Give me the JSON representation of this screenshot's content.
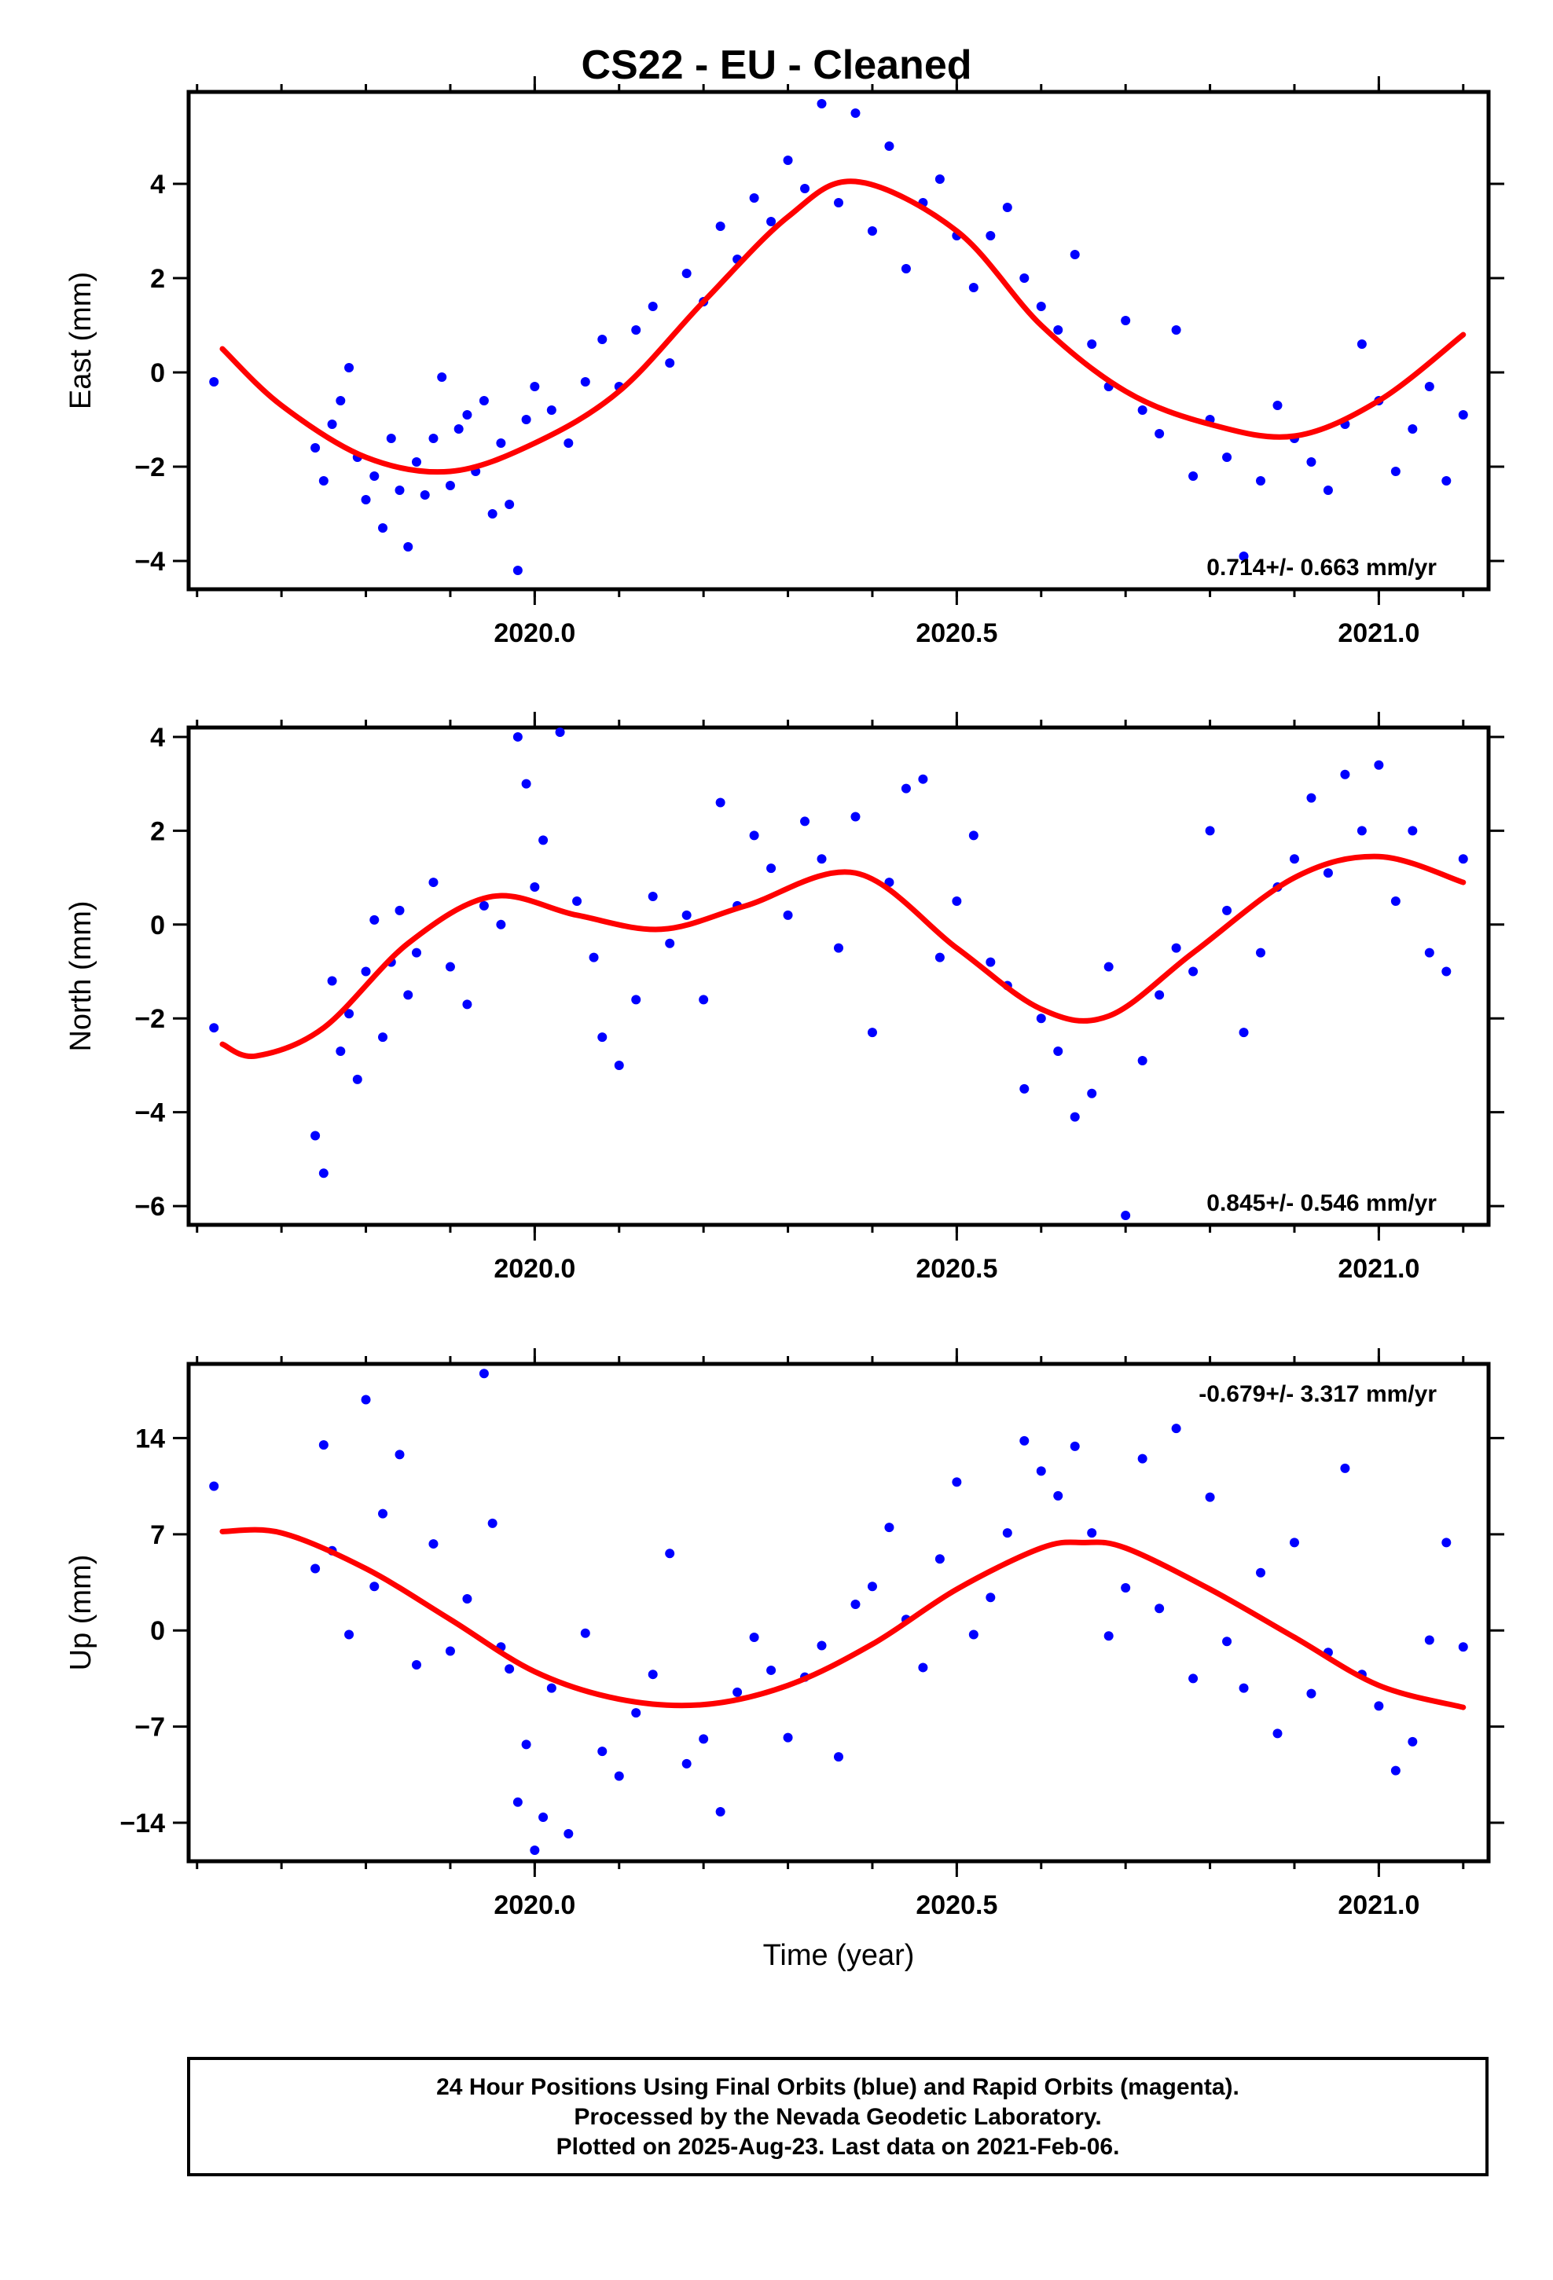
{
  "colors": {
    "final_orbits": "#0000ff",
    "fit_curve": "#ff0000",
    "frame": "#000000",
    "background": "#ffffff"
  },
  "chart_data": [
    {
      "type": "scatter",
      "title": "CS22  - EU - Cleaned",
      "ylabel": "East (mm)",
      "xlabel": "",
      "xlim": [
        2019.59,
        2021.13
      ],
      "ylim": [
        -4.6,
        5.95
      ],
      "xticks": [
        "2020.0",
        "2020.5",
        "2021.0"
      ],
      "yticks": [
        "4",
        "2",
        "0",
        "−2",
        "−4"
      ],
      "yticks_values": [
        4,
        2,
        0,
        -2,
        -4
      ],
      "annotation": "0.714+/- 0.663 mm/yr",
      "annotation_position": "bottom-right",
      "series": [
        {
          "kind": "points",
          "color": "blue",
          "x": [
            2019.62,
            2019.74,
            2019.75,
            2019.76,
            2019.77,
            2019.78,
            2019.79,
            2019.8,
            2019.81,
            2019.82,
            2019.83,
            2019.84,
            2019.85,
            2019.86,
            2019.87,
            2019.88,
            2019.89,
            2019.9,
            2019.91,
            2019.92,
            2019.93,
            2019.94,
            2019.95,
            2019.96,
            2019.97,
            2019.98,
            2019.99,
            2020.0,
            2020.02,
            2020.04,
            2020.06,
            2020.08,
            2020.1,
            2020.12,
            2020.14,
            2020.16,
            2020.18,
            2020.2,
            2020.22,
            2020.24,
            2020.26,
            2020.28,
            2020.3,
            2020.32,
            2020.34,
            2020.36,
            2020.38,
            2020.4,
            2020.42,
            2020.44,
            2020.46,
            2020.48,
            2020.5,
            2020.52,
            2020.54,
            2020.56,
            2020.58,
            2020.6,
            2020.62,
            2020.64,
            2020.66,
            2020.68,
            2020.7,
            2020.72,
            2020.74,
            2020.76,
            2020.78,
            2020.8,
            2020.82,
            2020.84,
            2020.86,
            2020.88,
            2020.9,
            2020.92,
            2020.94,
            2020.96,
            2020.98,
            2021.0,
            2021.02,
            2021.04,
            2021.06,
            2021.08,
            2021.1
          ],
          "y": [
            -0.2,
            -1.6,
            -2.3,
            -1.1,
            -0.6,
            0.1,
            -1.8,
            -2.7,
            -2.2,
            -3.3,
            -1.4,
            -2.5,
            -3.7,
            -1.9,
            -2.6,
            -1.4,
            -0.1,
            -2.4,
            -1.2,
            -0.9,
            -2.1,
            -0.6,
            -3.0,
            -1.5,
            -2.8,
            -4.2,
            -1.0,
            -0.3,
            -0.8,
            -1.5,
            -0.2,
            0.7,
            -0.3,
            0.9,
            1.4,
            0.2,
            2.1,
            1.5,
            3.1,
            2.4,
            3.7,
            3.2,
            4.5,
            3.9,
            5.7,
            3.6,
            5.5,
            3.0,
            4.8,
            2.2,
            3.6,
            4.1,
            2.9,
            1.8,
            2.9,
            3.5,
            2.0,
            1.4,
            0.9,
            2.5,
            0.6,
            -0.3,
            1.1,
            -0.8,
            -1.3,
            0.9,
            -2.2,
            -1.0,
            -1.8,
            -3.9,
            -2.3,
            -0.7,
            -1.4,
            -1.9,
            -2.5,
            -1.1,
            0.6,
            -0.6,
            -2.1,
            -1.2,
            -0.3,
            -2.3,
            -0.9
          ]
        },
        {
          "kind": "fit",
          "color": "red",
          "x": [
            2019.63,
            2019.7,
            2019.8,
            2019.9,
            2020.0,
            2020.1,
            2020.2,
            2020.3,
            2020.38,
            2020.5,
            2020.6,
            2020.7,
            2020.8,
            2020.9,
            2021.0,
            2021.1
          ],
          "y": [
            0.5,
            -0.7,
            -1.8,
            -2.1,
            -1.5,
            -0.4,
            1.5,
            3.3,
            4.05,
            3.0,
            1.0,
            -0.4,
            -1.1,
            -1.35,
            -0.6,
            0.8
          ]
        }
      ]
    },
    {
      "type": "scatter",
      "title": "",
      "ylabel": "North (mm)",
      "xlabel": "",
      "xlim": [
        2019.59,
        2021.13
      ],
      "ylim": [
        -6.4,
        4.2
      ],
      "xticks": [
        "2020.0",
        "2020.5",
        "2021.0"
      ],
      "yticks": [
        "4",
        "2",
        "0",
        "−2",
        "−4",
        "−6"
      ],
      "yticks_values": [
        4,
        2,
        0,
        -2,
        -4,
        -6
      ],
      "annotation": "0.845+/- 0.546 mm/yr",
      "annotation_position": "bottom-right",
      "series": [
        {
          "kind": "points",
          "color": "blue",
          "x": [
            2019.62,
            2019.74,
            2019.75,
            2019.76,
            2019.77,
            2019.78,
            2019.79,
            2019.8,
            2019.81,
            2019.82,
            2019.83,
            2019.84,
            2019.85,
            2019.86,
            2019.88,
            2019.9,
            2019.92,
            2019.94,
            2019.96,
            2019.98,
            2019.99,
            2020.0,
            2020.01,
            2020.03,
            2020.05,
            2020.07,
            2020.08,
            2020.1,
            2020.12,
            2020.14,
            2020.16,
            2020.18,
            2020.2,
            2020.22,
            2020.24,
            2020.26,
            2020.28,
            2020.3,
            2020.32,
            2020.34,
            2020.36,
            2020.38,
            2020.4,
            2020.42,
            2020.44,
            2020.46,
            2020.48,
            2020.5,
            2020.52,
            2020.54,
            2020.56,
            2020.58,
            2020.6,
            2020.62,
            2020.64,
            2020.66,
            2020.68,
            2020.7,
            2020.72,
            2020.74,
            2020.76,
            2020.78,
            2020.8,
            2020.82,
            2020.84,
            2020.86,
            2020.88,
            2020.9,
            2020.92,
            2020.94,
            2020.96,
            2020.98,
            2021.0,
            2021.02,
            2021.04,
            2021.06,
            2021.08,
            2021.1
          ],
          "y": [
            -2.2,
            -4.5,
            -5.3,
            -1.2,
            -2.7,
            -1.9,
            -3.3,
            -1.0,
            0.1,
            -2.4,
            -0.8,
            0.3,
            -1.5,
            -0.6,
            0.9,
            -0.9,
            -1.7,
            0.4,
            0.0,
            4.0,
            3.0,
            0.8,
            1.8,
            4.1,
            0.5,
            -0.7,
            -2.4,
            -3.0,
            -1.6,
            0.6,
            -0.4,
            0.2,
            -1.6,
            2.6,
            0.4,
            1.9,
            1.2,
            0.2,
            2.2,
            1.4,
            -0.5,
            2.3,
            -2.3,
            0.9,
            2.9,
            3.1,
            -0.7,
            0.5,
            1.9,
            -0.8,
            -1.3,
            -3.5,
            -2.0,
            -2.7,
            -4.1,
            -3.6,
            -0.9,
            -6.2,
            -2.9,
            -1.5,
            -0.5,
            -1.0,
            2.0,
            0.3,
            -2.3,
            -0.6,
            0.8,
            1.4,
            2.7,
            1.1,
            3.2,
            2.0,
            3.4,
            0.5,
            2.0,
            -0.6,
            -1.0,
            1.4
          ]
        },
        {
          "kind": "fit",
          "color": "red",
          "x": [
            2019.63,
            2019.67,
            2019.75,
            2019.85,
            2019.95,
            2020.05,
            2020.15,
            2020.25,
            2020.38,
            2020.5,
            2020.6,
            2020.68,
            2020.78,
            2020.9,
            2021.0,
            2021.1
          ],
          "y": [
            -2.55,
            -2.8,
            -2.2,
            -0.4,
            0.6,
            0.2,
            -0.1,
            0.4,
            1.1,
            -0.5,
            -1.8,
            -1.95,
            -0.6,
            1.0,
            1.45,
            0.9
          ]
        }
      ]
    },
    {
      "type": "scatter",
      "title": "",
      "ylabel": "Up (mm)",
      "xlabel": "Time (year)",
      "xlim": [
        2019.59,
        2021.13
      ],
      "ylim": [
        -16.8,
        19.4
      ],
      "xticks": [
        "2020.0",
        "2020.5",
        "2021.0"
      ],
      "yticks": [
        "14",
        "7",
        "0",
        "−7",
        "−14"
      ],
      "yticks_values": [
        14,
        7,
        0,
        -7,
        -14
      ],
      "annotation": "-0.679+/- 3.317 mm/yr",
      "annotation_position": "top-right",
      "series": [
        {
          "kind": "points",
          "color": "blue",
          "x": [
            2019.62,
            2019.74,
            2019.75,
            2019.76,
            2019.78,
            2019.8,
            2019.81,
            2019.82,
            2019.84,
            2019.86,
            2019.88,
            2019.9,
            2019.92,
            2019.94,
            2019.95,
            2019.96,
            2019.97,
            2019.98,
            2019.99,
            2020.0,
            2020.01,
            2020.02,
            2020.04,
            2020.06,
            2020.08,
            2020.1,
            2020.12,
            2020.14,
            2020.16,
            2020.18,
            2020.2,
            2020.22,
            2020.24,
            2020.26,
            2020.28,
            2020.3,
            2020.32,
            2020.34,
            2020.36,
            2020.38,
            2020.4,
            2020.42,
            2020.44,
            2020.46,
            2020.48,
            2020.5,
            2020.52,
            2020.54,
            2020.56,
            2020.58,
            2020.6,
            2020.62,
            2020.64,
            2020.66,
            2020.68,
            2020.7,
            2020.72,
            2020.74,
            2020.76,
            2020.78,
            2020.8,
            2020.82,
            2020.84,
            2020.86,
            2020.88,
            2020.9,
            2020.92,
            2020.94,
            2020.96,
            2020.98,
            2021.0,
            2021.02,
            2021.04,
            2021.06,
            2021.08,
            2021.1
          ],
          "y": [
            10.5,
            4.5,
            13.5,
            5.8,
            -0.3,
            16.8,
            3.2,
            8.5,
            12.8,
            -2.5,
            6.3,
            -1.5,
            2.3,
            18.7,
            7.8,
            -1.2,
            -2.8,
            -12.5,
            -8.3,
            -16.0,
            -13.6,
            -4.2,
            -14.8,
            -0.2,
            -8.8,
            -10.6,
            -6.0,
            -3.2,
            5.6,
            -9.7,
            -7.9,
            -13.2,
            -4.5,
            -0.5,
            -2.9,
            -7.8,
            -3.4,
            -1.1,
            -9.2,
            1.9,
            3.2,
            7.5,
            0.8,
            -2.7,
            5.2,
            10.8,
            -0.3,
            2.4,
            7.1,
            13.8,
            11.6,
            9.8,
            13.4,
            7.1,
            -0.4,
            3.1,
            12.5,
            1.6,
            14.7,
            -3.5,
            9.7,
            -0.8,
            -4.2,
            4.2,
            -7.5,
            6.4,
            -4.6,
            -1.6,
            11.8,
            -3.2,
            -5.5,
            -10.2,
            -8.1,
            -0.7,
            6.4,
            -1.2
          ]
        },
        {
          "kind": "fit",
          "color": "red",
          "x": [
            2019.63,
            2019.7,
            2019.8,
            2019.9,
            2020.0,
            2020.1,
            2020.2,
            2020.3,
            2020.4,
            2020.5,
            2020.6,
            2020.65,
            2020.7,
            2020.8,
            2020.9,
            2021.0,
            2021.1
          ],
          "y": [
            7.2,
            7.1,
            4.5,
            0.8,
            -3.0,
            -5.0,
            -5.4,
            -4.0,
            -1.0,
            3.0,
            6.0,
            6.4,
            6.0,
            3.0,
            -0.5,
            -4.0,
            -5.6
          ]
        }
      ]
    }
  ],
  "footer": {
    "line1": "24 Hour Positions Using Final Orbits (blue) and Rapid Orbits (magenta).",
    "line2": "Processed by the Nevada Geodetic Laboratory.",
    "line3": "Plotted on 2025-Aug-23. Last data on 2021-Feb-06."
  }
}
